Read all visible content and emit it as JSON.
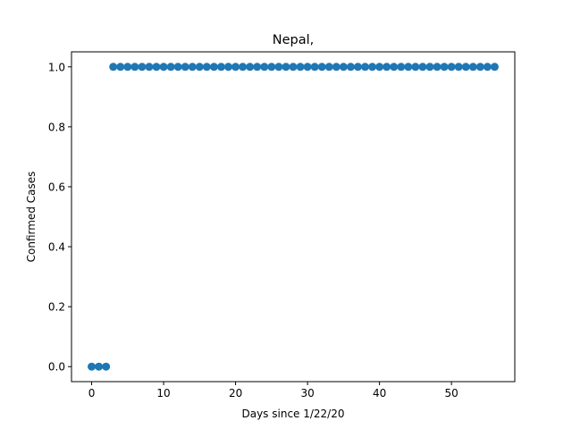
{
  "chart_data": {
    "type": "scatter",
    "title": "Nepal,",
    "xlabel": "Days since 1/22/20",
    "ylabel": "Confirmed Cases",
    "xlim": [
      -2.8,
      58.8
    ],
    "ylim": [
      -0.05,
      1.05
    ],
    "xticks": [
      0,
      10,
      20,
      30,
      40,
      50
    ],
    "yticks": [
      0.0,
      0.2,
      0.4,
      0.6,
      0.8,
      1.0
    ],
    "ytick_labels": [
      "0.0",
      "0.2",
      "0.4",
      "0.6",
      "0.8",
      "1.0"
    ],
    "grid": false,
    "marker_color": "#1f77b4",
    "series": [
      {
        "x": [
          0,
          1,
          2,
          3,
          4,
          5,
          6,
          7,
          8,
          9,
          10,
          11,
          12,
          13,
          14,
          15,
          16,
          17,
          18,
          19,
          20,
          21,
          22,
          23,
          24,
          25,
          26,
          27,
          28,
          29,
          30,
          31,
          32,
          33,
          34,
          35,
          36,
          37,
          38,
          39,
          40,
          41,
          42,
          43,
          44,
          45,
          46,
          47,
          48,
          49,
          50,
          51,
          52,
          53,
          54,
          55,
          56
        ],
        "y": [
          0,
          0,
          0,
          1,
          1,
          1,
          1,
          1,
          1,
          1,
          1,
          1,
          1,
          1,
          1,
          1,
          1,
          1,
          1,
          1,
          1,
          1,
          1,
          1,
          1,
          1,
          1,
          1,
          1,
          1,
          1,
          1,
          1,
          1,
          1,
          1,
          1,
          1,
          1,
          1,
          1,
          1,
          1,
          1,
          1,
          1,
          1,
          1,
          1,
          1,
          1,
          1,
          1,
          1,
          1,
          1,
          1
        ]
      }
    ]
  }
}
